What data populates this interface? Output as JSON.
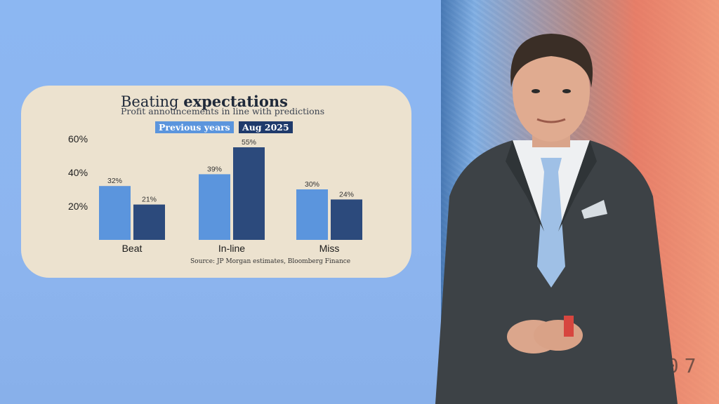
{
  "colors": {
    "previous_years": "#5b95dd",
    "aug_2025": "#2c4a7c",
    "card_bg": "#ece2cf",
    "screen_bg": "#8cb7f2"
  },
  "chart_data": {
    "type": "bar",
    "title_normal": "Beating",
    "title_bold": "expectations",
    "subtitle": "Profit announcements in line with predictions",
    "categories": [
      "Beat",
      "In-line",
      "Miss"
    ],
    "series": [
      {
        "name": "Previous years",
        "values": [
          32,
          39,
          30
        ],
        "labels": [
          "32%",
          "39%",
          "30%"
        ]
      },
      {
        "name": "Aug 2025",
        "values": [
          21,
          55,
          24
        ],
        "labels": [
          "21%",
          "55%",
          "24%"
        ]
      }
    ],
    "yticks": [
      {
        "value": 20,
        "label": "20%"
      },
      {
        "value": 40,
        "label": "40%"
      },
      {
        "value": 60,
        "label": "60%"
      }
    ],
    "ylim": [
      0,
      60
    ],
    "grid": false,
    "legend_placement": "top",
    "source": "Source:  JP Morgan estimates, Bloomberg Finance"
  },
  "background": {
    "banknote_text": "J 07"
  }
}
